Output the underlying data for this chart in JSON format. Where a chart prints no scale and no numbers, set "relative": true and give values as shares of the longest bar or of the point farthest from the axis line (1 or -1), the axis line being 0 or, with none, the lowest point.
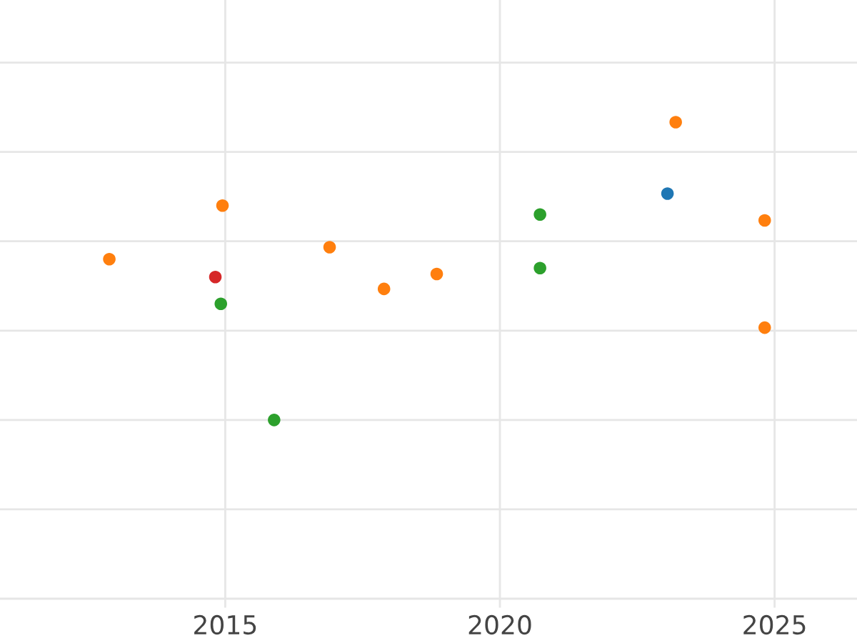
{
  "chart_data": {
    "type": "scatter",
    "relative": true,
    "xlim": [
      2010.9,
      2026.5
    ],
    "xticks": [
      2015,
      2020,
      2025
    ],
    "grid": true,
    "marker": "circle",
    "tick_labels": "x",
    "series": [
      {
        "color": "#ff7f0e",
        "x": [
          2012.89,
          2014.95,
          2016.9,
          2017.89,
          2018.85,
          2023.2,
          2024.82,
          2024.82
        ],
        "values": [
          0.54,
          0.72,
          0.58,
          0.44,
          0.49,
          1,
          0.67,
          0.31
        ]
      },
      {
        "color": "#d62728",
        "x": [
          2014.82
        ],
        "values": [
          0.48
        ]
      },
      {
        "color": "#2ca02c",
        "x": [
          2014.92,
          2015.89,
          2020.73,
          2020.73
        ],
        "values": [
          0.39,
          0,
          0.69,
          0.51
        ]
      },
      {
        "color": "#1f77b4",
        "x": [
          2023.05
        ],
        "values": [
          0.76
        ]
      }
    ]
  }
}
